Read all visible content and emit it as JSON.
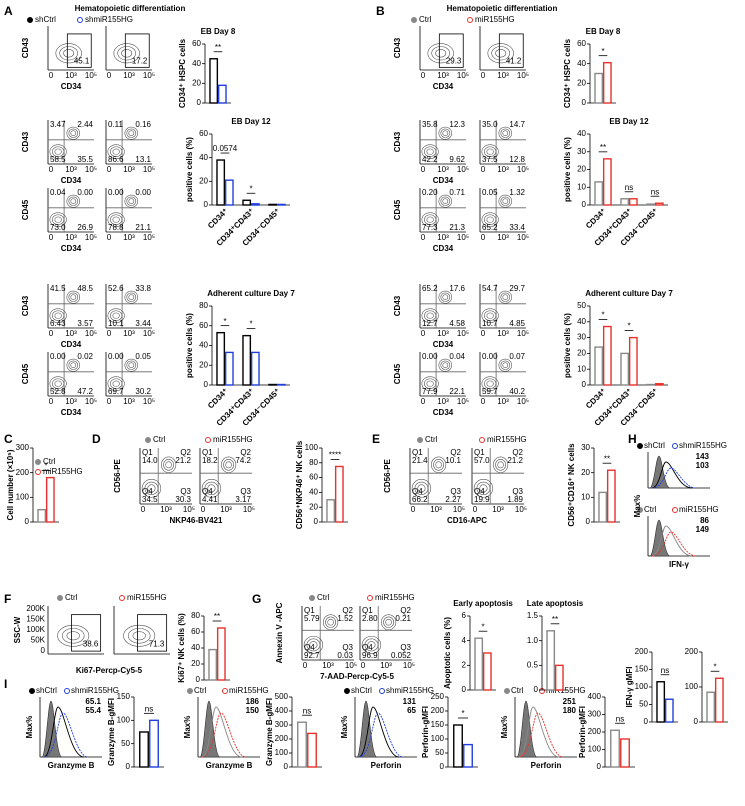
{
  "panel_labels": [
    "A",
    "B",
    "C",
    "D",
    "E",
    "F",
    "G",
    "H",
    "I"
  ],
  "header": {
    "title": "Hematopoietic differentiation"
  },
  "flow_ticks": [
    "0",
    "10³",
    "10⁵"
  ],
  "flow_yticks_ssc": [
    "200K",
    "150K",
    "100K",
    "50K",
    "0"
  ],
  "quadrant_names": [
    "Q1",
    "Q2",
    "Q4",
    "Q3"
  ],
  "legends": [
    {
      "names": [
        "shCtrl",
        "shmiR155HG"
      ],
      "colors": [
        "#000000",
        "#1f3fdc"
      ]
    },
    {
      "names": [
        "Ctrl",
        "miR155HG"
      ],
      "colors": [
        "#888888",
        "#e8312a"
      ]
    },
    {
      "names": [
        "Ctrl",
        "miR155HG"
      ],
      "colors": [
        "#888888",
        "#e8312a"
      ]
    },
    {
      "names": [
        "Ctrl",
        "miR155HG"
      ],
      "colors": [
        "#888888",
        "#e8312a"
      ]
    },
    {
      "names": [
        "Ctrl",
        "miR155HG"
      ],
      "colors": [
        "#888888",
        "#e8312a"
      ]
    },
    {
      "names": [
        "Ctrl",
        "miR155HG"
      ],
      "colors": [
        "#888888",
        "#e8312a"
      ]
    },
    {
      "names": [
        "Ctrl",
        "miR155HG"
      ],
      "colors": [
        "#888888",
        "#e8312a"
      ]
    }
  ],
  "flow": [
    {
      "ylabel": "CD43",
      "xlabel": "CD34",
      "plots": [
        [
          "45.1"
        ],
        [
          "17.2"
        ]
      ]
    },
    {
      "ylabel": "CD43",
      "xlabel": "CD34",
      "plots": [
        [
          "3.47",
          "2.44",
          "58.5",
          "35.5"
        ],
        [
          "0.11",
          "0.16",
          "86.6",
          "13.1"
        ]
      ]
    },
    {
      "ylabel": "CD45",
      "xlabel": "CD34",
      "plots": [
        [
          "0.04",
          "0.00",
          "73.0",
          "26.9"
        ],
        [
          "0.00",
          "0.00",
          "78.8",
          "21.1"
        ]
      ]
    },
    {
      "ylabel": "CD43",
      "xlabel": "CD34",
      "plots": [
        [
          "41.5",
          "48.5",
          "6.43",
          "3.57"
        ],
        [
          "52.6",
          "33.8",
          "10.1",
          "3.44"
        ]
      ]
    },
    {
      "ylabel": "CD45",
      "xlabel": "CD34",
      "plots": [
        [
          "0.00",
          "0.02",
          "52.8",
          "47.2"
        ],
        [
          "0.00",
          "0.05",
          "69.7",
          "30.2"
        ]
      ]
    },
    {
      "ylabel": "CD43",
      "xlabel": "CD34",
      "plots": [
        [
          "29.3"
        ],
        [
          "41.2"
        ]
      ]
    },
    {
      "ylabel": "CD43",
      "xlabel": "CD34",
      "plots": [
        [
          "35.8",
          "12.3",
          "42.2",
          "9.62"
        ],
        [
          "35.0",
          "14.7",
          "37.5",
          "12.8"
        ]
      ]
    },
    {
      "ylabel": "CD45",
      "xlabel": "CD34",
      "plots": [
        [
          "0.20",
          "0.71",
          "77.3",
          "21.3"
        ],
        [
          "0.05",
          "1.32",
          "65.2",
          "33.4"
        ]
      ]
    },
    {
      "ylabel": "CD43",
      "xlabel": "CD34",
      "plots": [
        [
          "65.2",
          "17.6",
          "12.7",
          "4.58"
        ],
        [
          "54.7",
          "29.7",
          "10.7",
          "4.85"
        ]
      ]
    },
    {
      "ylabel": "CD45",
      "xlabel": "CD34",
      "plots": [
        [
          "0.00",
          "0.04",
          "77.9",
          "22.1"
        ],
        [
          "0.00",
          "0.07",
          "59.7",
          "40.2"
        ]
      ]
    },
    {
      "ylabel": "CD56-PE",
      "xlabel": "NKP46-BV421",
      "plots": [
        [
          "14.0",
          "21.2",
          "34.5",
          "30.3"
        ],
        [
          "18.2",
          "74.2",
          "4.41",
          "3.17"
        ]
      ]
    },
    {
      "ylabel": "CD56-PE",
      "xlabel": "CD16-APC",
      "plots": [
        [
          "21.4",
          "10.1",
          "66.2",
          "2.27"
        ],
        [
          "57.0",
          "21.2",
          "19.9",
          "1.89"
        ]
      ]
    },
    {
      "ylabel": "SSC-W",
      "xlabel": "Ki67-Percp-Cy5-5",
      "plots": [
        [
          "38.6"
        ],
        [
          "71.3"
        ]
      ]
    },
    {
      "ylabel": "Annexin V -APC",
      "xlabel": "7-AAD-Percp-Cy5-5",
      "plots": [
        [
          "5.79",
          "1.52",
          "92.7",
          "0.03"
        ],
        [
          "2.80",
          "0.21",
          "96.9",
          "0.052"
        ]
      ]
    }
  ],
  "histograms": [
    {
      "legend": [
        "shCtrl",
        "shmiR155HG"
      ],
      "colors": [
        "#000000",
        "#1f3fdc"
      ],
      "values": [
        "143",
        "103"
      ]
    },
    {
      "legend": [
        "Ctrl",
        "miR155HG"
      ],
      "colors": [
        "#888888",
        "#e8312a"
      ],
      "values": [
        "86",
        "149"
      ],
      "ylabel": "Max%",
      "xlabel": "IFN-γ"
    },
    {
      "legend": [
        "shCtrl",
        "shmiR155HG"
      ],
      "colors": [
        "#000000",
        "#1f3fdc"
      ],
      "values": [
        "65.1",
        "55.4"
      ],
      "ylabel": "Max%",
      "xlabel": "Granzyme B"
    },
    {
      "legend": [
        "Ctrl",
        "miR155HG"
      ],
      "colors": [
        "#888888",
        "#e8312a"
      ],
      "values": [
        "186",
        "150"
      ],
      "ylabel": "Max%",
      "xlabel": "Granzyme B"
    },
    {
      "legend": [
        "shCtrl",
        "shmiR155HG"
      ],
      "colors": [
        "#000000",
        "#1f3fdc"
      ],
      "values": [
        "131",
        "65"
      ],
      "ylabel": "Max%",
      "xlabel": "Perforin"
    },
    {
      "legend": [
        "Ctrl",
        "miR155HG"
      ],
      "colors": [
        "#888888",
        "#e8312a"
      ],
      "values": [
        "251",
        "180"
      ],
      "ylabel": "Max%",
      "xlabel": "Perforin"
    }
  ],
  "chart_data": [
    {
      "type": "bar",
      "title": "EB Day 8",
      "ylabel": "CD34⁺ HSPC cells",
      "categories": [
        null
      ],
      "series": [
        {
          "color": "#000000",
          "values": [
            45
          ]
        },
        {
          "color": "#1f3fdc",
          "values": [
            18
          ]
        }
      ],
      "ylim": [
        0,
        60
      ],
      "yticks": [
        0,
        20,
        40,
        60
      ],
      "annotations": [
        "**"
      ]
    },
    {
      "type": "bar",
      "title": "EB Day 12",
      "ylabel": "positive cells (%)",
      "categories": [
        "CD34⁺",
        "CD34⁺CD43⁺",
        "CD34⁻CD45⁺"
      ],
      "series": [
        {
          "color": "#000000",
          "values": [
            38,
            4,
            0.5
          ]
        },
        {
          "color": "#1f3fdc",
          "values": [
            21,
            1,
            0.5
          ]
        }
      ],
      "ylim": [
        0,
        60
      ],
      "yticks": [
        0,
        20,
        40,
        60
      ],
      "annotations": [
        "0.0574",
        "*",
        null
      ]
    },
    {
      "type": "bar",
      "title": "Adherent culture Day 7",
      "ylabel": "positive cells (%)",
      "categories": [
        "CD34⁺",
        "CD34⁺CD43⁺",
        "CD34⁻CD45⁺"
      ],
      "series": [
        {
          "color": "#000000",
          "values": [
            53,
            50,
            0.5
          ]
        },
        {
          "color": "#1f3fdc",
          "values": [
            33,
            33,
            0.5
          ]
        }
      ],
      "ylim": [
        0,
        80
      ],
      "yticks": [
        0,
        20,
        40,
        60,
        80
      ],
      "annotations": [
        "*",
        "*",
        null
      ]
    },
    {
      "type": "bar",
      "title": "EB Day 8",
      "ylabel": "CD34⁺ HSPC cells",
      "categories": [
        null
      ],
      "series": [
        {
          "color": "#888888",
          "values": [
            30
          ]
        },
        {
          "color": "#e8312a",
          "values": [
            41
          ]
        }
      ],
      "ylim": [
        0,
        60
      ],
      "yticks": [
        0,
        20,
        40,
        60
      ],
      "annotations": [
        "*"
      ]
    },
    {
      "type": "bar",
      "title": "EB Day 12",
      "ylabel": "positive cells (%)",
      "categories": [
        "CD34⁺",
        "CD34⁺CD43⁺",
        "CD34⁻CD45⁺"
      ],
      "series": [
        {
          "color": "#888888",
          "values": [
            13,
            3.5,
            0.5
          ]
        },
        {
          "color": "#e8312a",
          "values": [
            26,
            3.5,
            1
          ]
        }
      ],
      "ylim": [
        0,
        40
      ],
      "yticks": [
        0,
        10,
        20,
        30,
        40
      ],
      "annotations": [
        "**",
        "ns",
        "ns"
      ]
    },
    {
      "type": "bar",
      "title": "Adherent culture Day 7",
      "ylabel": "positive cells (%)",
      "categories": [
        "CD34⁺",
        "CD34⁺CD43⁺",
        "CD34⁻CD45⁺"
      ],
      "series": [
        {
          "color": "#888888",
          "values": [
            24,
            20,
            0.3
          ]
        },
        {
          "color": "#e8312a",
          "values": [
            37,
            30,
            0.8
          ]
        }
      ],
      "ylim": [
        0,
        50
      ],
      "yticks": [
        0,
        10,
        20,
        30,
        40,
        50
      ],
      "annotations": [
        "*",
        "*",
        null
      ]
    },
    {
      "type": "bar",
      "ylabel": "Cell number (×10⁵)",
      "categories": [
        null
      ],
      "series": [
        {
          "color": "#888888",
          "values": [
            50
          ]
        },
        {
          "color": "#e8312a",
          "values": [
            180
          ]
        }
      ],
      "ylim": [
        0,
        300
      ],
      "yticks": [
        0,
        100,
        200,
        300
      ],
      "annotations": [
        "*"
      ]
    },
    {
      "type": "bar",
      "ylabel": "CD56⁺NKP46⁺ NK cells",
      "categories": [
        null
      ],
      "series": [
        {
          "color": "#888888",
          "values": [
            30
          ]
        },
        {
          "color": "#e8312a",
          "values": [
            75
          ]
        }
      ],
      "ylim": [
        0,
        100
      ],
      "yticks": [
        0,
        20,
        40,
        60,
        80,
        100
      ],
      "annotations": [
        "****"
      ]
    },
    {
      "type": "bar",
      "ylabel": "CD56⁺CD16⁺ NK cells",
      "categories": [
        null
      ],
      "series": [
        {
          "color": "#888888",
          "values": [
            12
          ]
        },
        {
          "color": "#e8312a",
          "values": [
            21
          ]
        }
      ],
      "ylim": [
        0,
        30
      ],
      "yticks": [
        0,
        10,
        20,
        30
      ],
      "annotations": [
        "**"
      ]
    },
    {
      "type": "bar",
      "ylabel": "Ki67⁺ NK cells (%)",
      "categories": [
        null
      ],
      "series": [
        {
          "color": "#888888",
          "values": [
            38
          ]
        },
        {
          "color": "#e8312a",
          "values": [
            65
          ]
        }
      ],
      "ylim": [
        0,
        80
      ],
      "yticks": [
        0,
        20,
        40,
        60,
        80
      ],
      "annotations": [
        "**"
      ]
    },
    {
      "type": "bar",
      "title": "Early apoptosis",
      "ylabel": "Apoptotic cells (%)",
      "categories": [
        null
      ],
      "series": [
        {
          "color": "#888888",
          "values": [
            4.2
          ]
        },
        {
          "color": "#e8312a",
          "values": [
            3
          ]
        }
      ],
      "ylim": [
        0,
        6
      ],
      "yticks": [
        0,
        2,
        4,
        6
      ],
      "annotations": [
        "*"
      ]
    },
    {
      "type": "bar",
      "title": "Late apoptosis",
      "categories": [
        null
      ],
      "series": [
        {
          "color": "#888888",
          "values": [
            1.2
          ]
        },
        {
          "color": "#e8312a",
          "values": [
            0.5
          ]
        }
      ],
      "ylim": [
        0,
        1.5
      ],
      "yticks": [
        0,
        0.5,
        {
          "value": 1,
          "label": "1.0"
        },
        1.5
      ],
      "annotations": [
        "**"
      ]
    },
    {
      "type": "bar",
      "ylabel": "IFN-γ gMFI",
      "categories": [
        null
      ],
      "series": [
        {
          "color": "#000000",
          "values": [
            115
          ]
        },
        {
          "color": "#1f3fdc",
          "values": [
            65
          ]
        }
      ],
      "ylim": [
        0,
        200
      ],
      "yticks": [
        0,
        50,
        100,
        150,
        200
      ],
      "annotations": [
        "ns"
      ]
    },
    {
      "type": "bar",
      "categories": [
        null
      ],
      "series": [
        {
          "color": "#888888",
          "values": [
            85
          ]
        },
        {
          "color": "#e8312a",
          "values": [
            125
          ]
        }
      ],
      "ylim": [
        0,
        200
      ],
      "yticks": [
        0,
        100,
        200
      ],
      "annotations": [
        "*"
      ]
    },
    {
      "type": "bar",
      "ylabel": "Granzyme B-gMFI",
      "categories": [
        null
      ],
      "series": [
        {
          "color": "#000000",
          "values": [
            75
          ]
        },
        {
          "color": "#1f3fdc",
          "values": [
            100
          ]
        }
      ],
      "ylim": [
        0,
        150
      ],
      "yticks": [
        0,
        50,
        100,
        150
      ],
      "annotations": [
        "ns"
      ]
    },
    {
      "type": "bar",
      "ylabel": "Granzyme B-gMFI",
      "categories": [
        null
      ],
      "series": [
        {
          "color": "#888888",
          "values": [
            320
          ]
        },
        {
          "color": "#e8312a",
          "values": [
            240
          ]
        }
      ],
      "ylim": [
        0,
        500
      ],
      "yticks": [
        0,
        100,
        200,
        300,
        400,
        500
      ],
      "annotations": [
        "ns"
      ]
    },
    {
      "type": "bar",
      "ylabel": "Perforin-gMFI",
      "categories": [
        null
      ],
      "series": [
        {
          "color": "#000000",
          "values": [
            150
          ]
        },
        {
          "color": "#1f3fdc",
          "values": [
            80
          ]
        }
      ],
      "ylim": [
        0,
        250
      ],
      "yticks": [
        0,
        50,
        100,
        150,
        200,
        250
      ],
      "annotations": [
        "*"
      ]
    },
    {
      "type": "bar",
      "ylabel": "Perforin-gMFI",
      "categories": [
        null
      ],
      "series": [
        {
          "color": "#888888",
          "values": [
            210
          ]
        },
        {
          "color": "#e8312a",
          "values": [
            160
          ]
        }
      ],
      "ylim": [
        0,
        400
      ],
      "yticks": [
        0,
        100,
        200,
        300,
        400
      ],
      "annotations": [
        "ns"
      ]
    }
  ]
}
